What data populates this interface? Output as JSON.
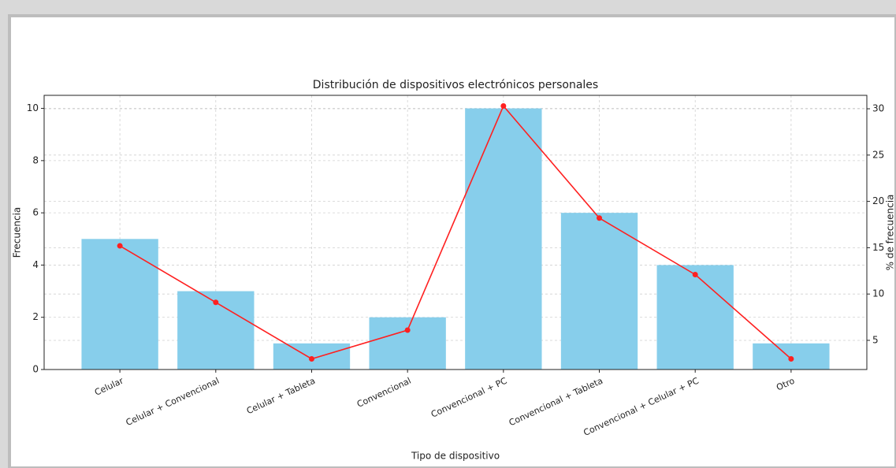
{
  "chart_data": {
    "type": "bar_line",
    "title": "Distribución de dispositivos electrónicos personales",
    "x_label": "Tipo de dispositivo",
    "y_label": "Frecuencia",
    "y2_label": "% de frecuencia",
    "categories": [
      "Celular",
      "Celular + Convencional",
      "Celular + Tableta",
      "Convencional",
      "Convencional + PC",
      "Convencional + Tableta",
      "Convencional + Celular + PC",
      "Otro"
    ],
    "series": [
      {
        "name": "Frecuencia",
        "type": "bar",
        "color": "#87ceeb",
        "values": [
          5,
          3,
          1,
          2,
          10,
          6,
          4,
          1
        ]
      },
      {
        "name": "% de frecuencia",
        "type": "line",
        "axis": "y2",
        "color": "#ff2020",
        "values": [
          15.2,
          9.1,
          3.0,
          6.1,
          30.3,
          18.2,
          12.1,
          3.0
        ]
      }
    ],
    "ylim": [
      0,
      10.5
    ],
    "yticks": [
      0,
      2,
      4,
      6,
      8,
      10
    ],
    "y2lim": [
      1.85,
      31.45
    ],
    "y2ticks": [
      5,
      10,
      15,
      20,
      25,
      30
    ],
    "grid": true
  }
}
